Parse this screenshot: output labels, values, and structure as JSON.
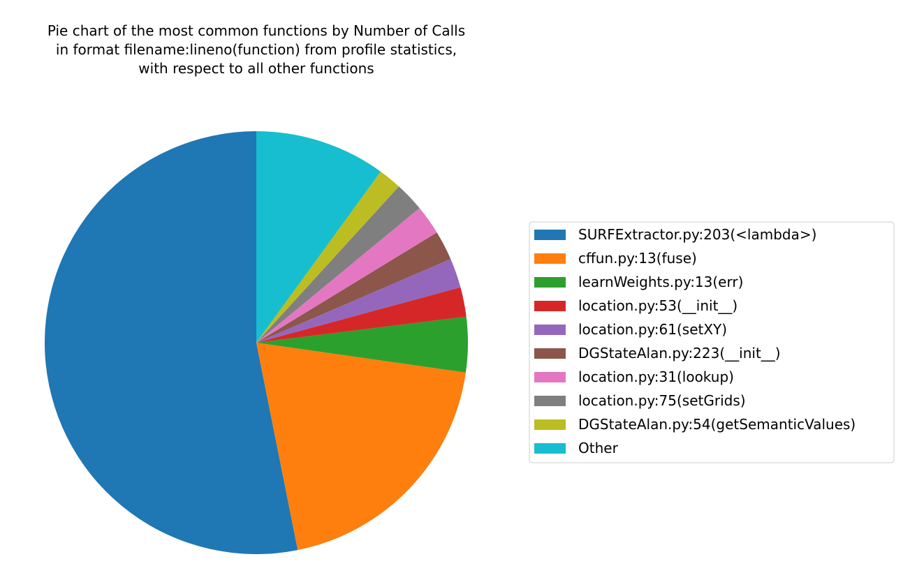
{
  "chart_data": {
    "type": "pie",
    "title": "Pie chart of the most common functions by Number of Calls\n in format filename:lineno(function) from profile statistics,\n with respect to all other functions",
    "title_lines": [
      "Pie chart of the most common functions by Number of Calls",
      "in format filename:lineno(function) from profile statistics,",
      "with respect to all other functions"
    ],
    "labels": [
      "SURFExtractor.py:203(<lambda>)",
      "cffun.py:13(fuse)",
      "learnWeights.py:13(err)",
      "location.py:53(__init__)",
      "location.py:61(setXY)",
      "DGStateAlan.py:223(__init__)",
      "location.py:31(lookup)",
      "location.py:75(setGrids)",
      "DGStateAlan.py:54(getSemanticValues)",
      "Other"
    ],
    "values": [
      54.2,
      20.0,
      4.3,
      2.3,
      2.3,
      2.3,
      2.3,
      2.3,
      1.8,
      10.2
    ],
    "colors": [
      "#1f77b4",
      "#ff7f0e",
      "#2ca02c",
      "#d62728",
      "#9467bd",
      "#8c564b",
      "#e377c2",
      "#7f7f7f",
      "#bcbd22",
      "#17becf"
    ],
    "start_angle": 90,
    "direction": "counterclockwise",
    "legend_position": "right"
  }
}
